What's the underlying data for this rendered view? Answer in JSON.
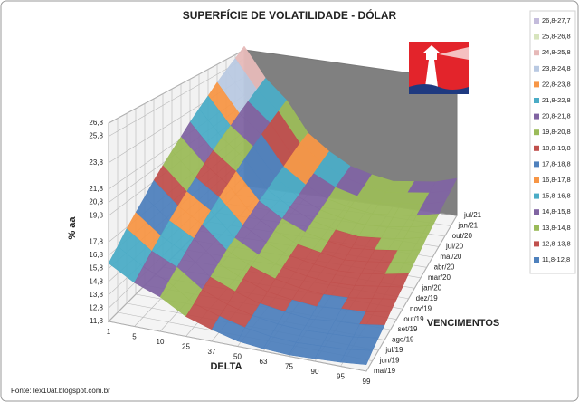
{
  "chart_data": {
    "type": "surface",
    "title": "SUPERFÍCIE DE VOLATILIDADE - DÓLAR",
    "zlabel": "% aa",
    "xlabel": "DELTA",
    "ylabel": "VENCIMENTOS",
    "source": "Fonte: lex10at.blogspot.com.br",
    "categories": [
      1,
      5,
      10,
      25,
      37,
      50,
      63,
      75,
      90,
      95,
      99
    ],
    "maturities": [
      "mai/19",
      "jun/19",
      "jul/19",
      "ago/19",
      "set/19",
      "out/19",
      "nov/19",
      "dez/19",
      "jan/20",
      "mar/20",
      "abr/20",
      "mai/20",
      "jul/20",
      "out/20",
      "jan/21",
      "jul/21"
    ],
    "values": [
      [
        16.2,
        15.1,
        14.4,
        13.3,
        12.7,
        12.2,
        12.0,
        11.9,
        12.0,
        12.1,
        12.3
      ],
      [
        16.9,
        15.7,
        14.9,
        13.6,
        13.0,
        12.5,
        12.2,
        12.1,
        12.2,
        12.3,
        12.6
      ],
      [
        17.7,
        16.3,
        15.4,
        14.0,
        13.2,
        12.7,
        12.4,
        12.3,
        12.4,
        12.5,
        12.8
      ],
      [
        18.4,
        16.9,
        15.9,
        14.3,
        13.5,
        12.9,
        12.6,
        12.4,
        12.6,
        12.7,
        13.0
      ],
      [
        19.1,
        17.5,
        16.4,
        14.7,
        13.8,
        13.1,
        12.8,
        12.6,
        12.8,
        12.9,
        13.3
      ],
      [
        19.9,
        18.1,
        16.9,
        15.1,
        14.1,
        13.4,
        13.0,
        12.8,
        12.9,
        13.2,
        13.5
      ],
      [
        20.6,
        18.7,
        17.4,
        15.4,
        14.3,
        13.6,
        13.2,
        13.0,
        13.1,
        13.4,
        13.7
      ],
      [
        21.3,
        19.3,
        17.9,
        15.8,
        14.6,
        13.8,
        13.4,
        13.2,
        13.3,
        13.6,
        14.0
      ],
      [
        22.0,
        19.9,
        18.4,
        16.1,
        14.9,
        14.0,
        13.6,
        13.3,
        13.5,
        13.8,
        14.2
      ],
      [
        22.8,
        20.5,
        18.9,
        16.5,
        15.2,
        14.3,
        13.8,
        13.5,
        13.7,
        14.0,
        14.4
      ],
      [
        23.5,
        21.1,
        19.4,
        16.8,
        15.5,
        14.5,
        14.0,
        13.7,
        13.9,
        14.2,
        14.7
      ],
      [
        24.2,
        21.6,
        19.9,
        17.2,
        15.7,
        14.7,
        14.2,
        13.9,
        14.1,
        14.4,
        14.9
      ],
      [
        25.0,
        22.2,
        20.4,
        17.5,
        16.0,
        14.9,
        14.4,
        14.1,
        14.3,
        14.6,
        15.1
      ],
      [
        25.7,
        22.8,
        20.9,
        17.9,
        16.3,
        15.2,
        14.6,
        14.2,
        14.5,
        14.8,
        15.4
      ],
      [
        26.4,
        23.4,
        21.4,
        18.3,
        16.6,
        15.4,
        14.8,
        14.4,
        14.7,
        15.0,
        15.6
      ],
      [
        27.2,
        24.0,
        21.9,
        18.6,
        16.9,
        15.6,
        15.0,
        14.6,
        14.9,
        15.2,
        15.9
      ]
    ],
    "zlim": [
      11.8,
      26.8
    ],
    "zticks": [
      {
        "value": 11.8,
        "label": "11,8"
      },
      {
        "value": 12.8,
        "label": "12,8"
      },
      {
        "value": 13.8,
        "label": "13,8"
      },
      {
        "value": 14.8,
        "label": "14,8"
      },
      {
        "value": 15.8,
        "label": "15,8"
      },
      {
        "value": 16.8,
        "label": "16,8"
      },
      {
        "value": 17.8,
        "label": "17,8"
      },
      {
        "value": 19.8,
        "label": "19,8"
      },
      {
        "value": 20.8,
        "label": "20,8"
      },
      {
        "value": 21.8,
        "label": "21,8"
      },
      {
        "value": 23.8,
        "label": "23,8"
      },
      {
        "value": 25.8,
        "label": "25,8"
      },
      {
        "value": 26.8,
        "label": "26,8"
      }
    ],
    "bands": [
      {
        "label": "26,8-27,7",
        "min": 26.8,
        "max": 27.7,
        "color": "#c4bcdc"
      },
      {
        "label": "25,8-26,8",
        "min": 25.8,
        "max": 26.8,
        "color": "#d7e4bd"
      },
      {
        "label": "24,8-25,8",
        "min": 24.8,
        "max": 25.8,
        "color": "#e6b9b8"
      },
      {
        "label": "23,8-24,8",
        "min": 23.8,
        "max": 24.8,
        "color": "#b9c9e2"
      },
      {
        "label": "22,8-23,8",
        "min": 22.8,
        "max": 23.8,
        "color": "#f79646"
      },
      {
        "label": "21,8-22,8",
        "min": 21.8,
        "max": 22.8,
        "color": "#4bacc6"
      },
      {
        "label": "20,8-21,8",
        "min": 20.8,
        "max": 21.8,
        "color": "#8064a2"
      },
      {
        "label": "19,8-20,8",
        "min": 19.8,
        "max": 20.8,
        "color": "#9bbb59"
      },
      {
        "label": "18,8-19,8",
        "min": 18.8,
        "max": 19.8,
        "color": "#c0504d"
      },
      {
        "label": "17,8-18,8",
        "min": 17.8,
        "max": 18.8,
        "color": "#4f81bd"
      },
      {
        "label": "16,8-17,8",
        "min": 16.8,
        "max": 17.8,
        "color": "#f79646"
      },
      {
        "label": "15,8-16,8",
        "min": 15.8,
        "max": 16.8,
        "color": "#4bacc6"
      },
      {
        "label": "14,8-15,8",
        "min": 14.8,
        "max": 15.8,
        "color": "#8064a2"
      },
      {
        "label": "13,8-14,8",
        "min": 13.8,
        "max": 14.8,
        "color": "#9bbb59"
      },
      {
        "label": "12,8-13,8",
        "min": 12.8,
        "max": 13.8,
        "color": "#c0504d"
      },
      {
        "label": "11,8-12,8",
        "min": 11.8,
        "max": 12.8,
        "color": "#4f81bd"
      }
    ],
    "grid": true
  }
}
